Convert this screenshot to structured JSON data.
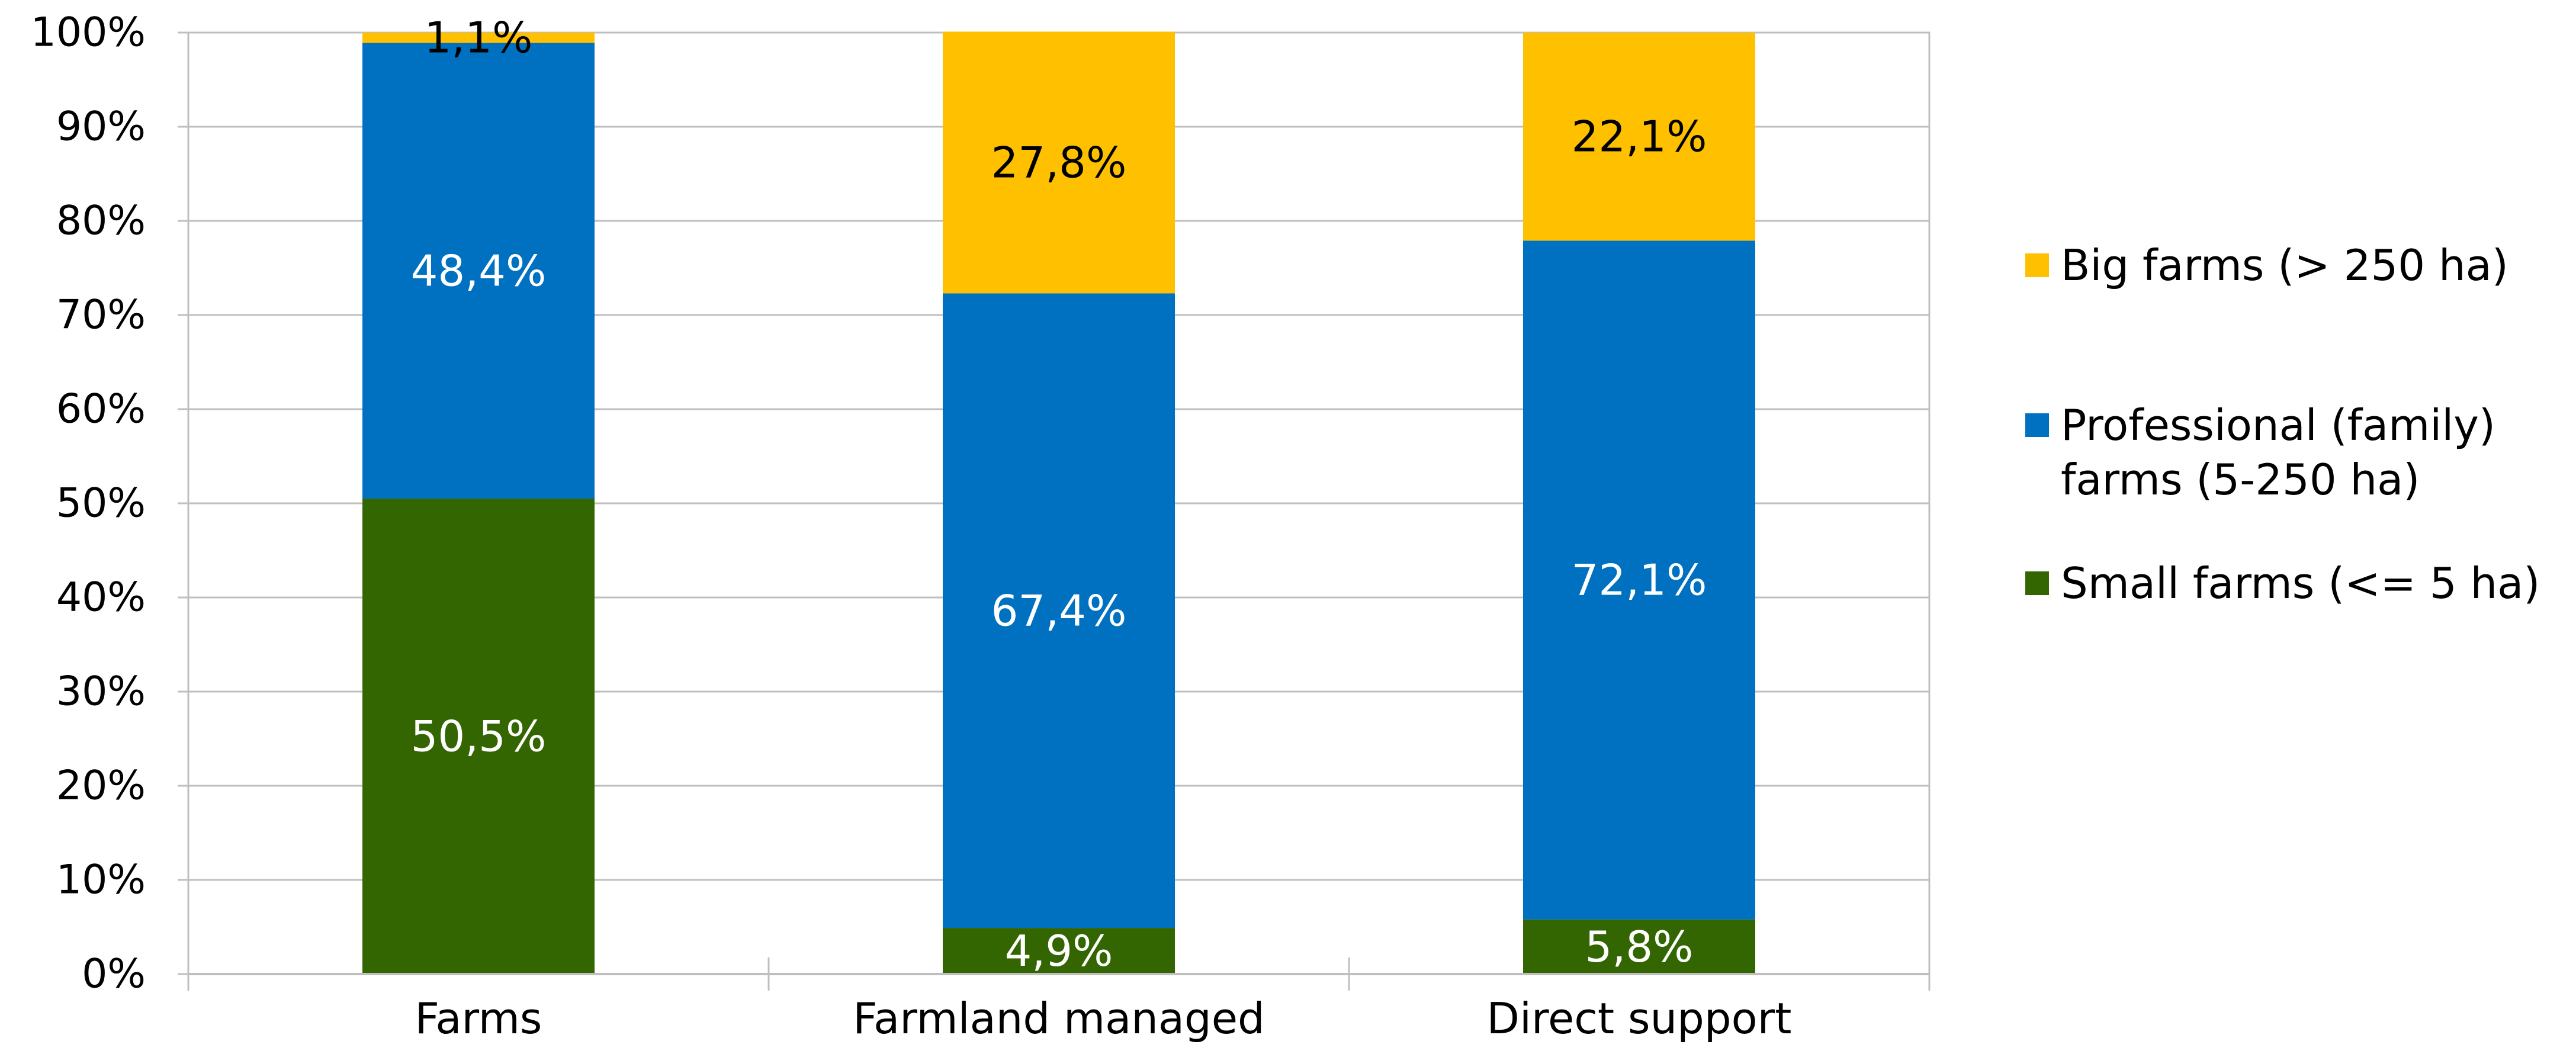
{
  "chart_data": {
    "type": "bar",
    "stacked": true,
    "categories": [
      "Farms",
      "Farmland managed",
      "Direct support"
    ],
    "series": [
      {
        "name": "Small farms (<= 5 ha)",
        "color": "#336600",
        "label_color": "#ffffff",
        "values": [
          50.5,
          4.9,
          5.8
        ],
        "labels": [
          "50,5%",
          "4,9%",
          "5,8%"
        ]
      },
      {
        "name": "Professional (family) farms (5-250 ha)",
        "color": "#0070C0",
        "label_color": "#ffffff",
        "values": [
          48.4,
          67.4,
          72.1
        ],
        "labels": [
          "48,4%",
          "67,4%",
          "72,1%"
        ]
      },
      {
        "name": "Big farms (> 250 ha)",
        "color": "#FFC000",
        "label_color": "#000000",
        "values": [
          1.1,
          27.8,
          22.1
        ],
        "labels": [
          "1,1%",
          "27,8%",
          "22,1%"
        ]
      }
    ],
    "ylim": [
      0,
      100
    ],
    "y_ticks": [
      "0%",
      "10%",
      "20%",
      "30%",
      "40%",
      "50%",
      "60%",
      "70%",
      "80%",
      "90%",
      "100%"
    ],
    "grid": true,
    "legend": {
      "position": "right",
      "order": [
        2,
        1,
        0
      ],
      "entries": [
        [
          "Big farms (> 250 ha)"
        ],
        [
          "Professional (family)",
          "farms (5-250 ha)"
        ],
        [
          "Small farms (<= 5 ha)"
        ]
      ]
    },
    "title": "",
    "xlabel": "",
    "ylabel": ""
  }
}
